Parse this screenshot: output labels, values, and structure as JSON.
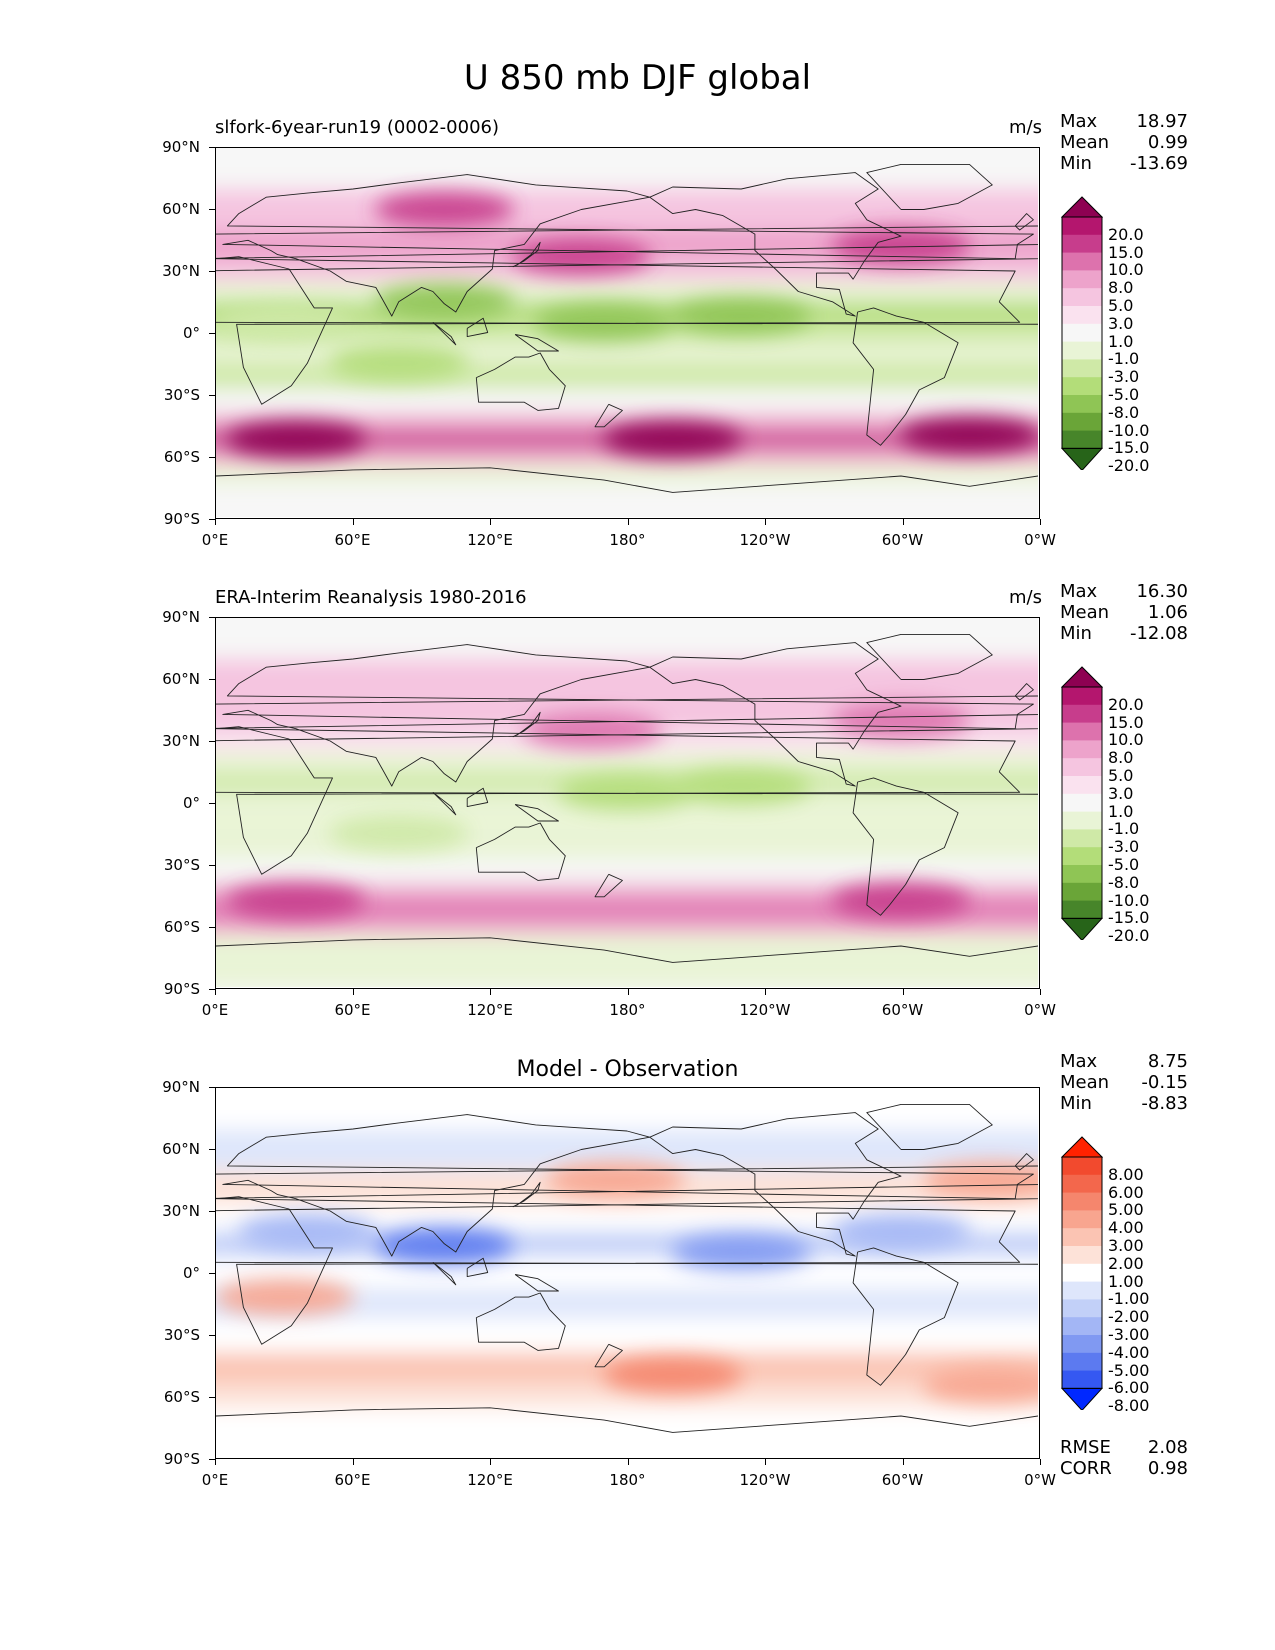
{
  "title": "U 850 mb DJF global",
  "chart_data": [
    {
      "type": "heatmap",
      "subtitle": "slfork-6year-run19 (0002-0006)",
      "units": "m/s",
      "stats": [
        {
          "label": "Max",
          "value": "18.97"
        },
        {
          "label": "Mean",
          "value": "0.99"
        },
        {
          "label": "Min",
          "value": "-13.69"
        }
      ],
      "yticks": [
        "90°N",
        "60°N",
        "30°N",
        "0°",
        "30°S",
        "60°S",
        "90°S"
      ],
      "xticks": [
        "0°E",
        "60°E",
        "120°E",
        "180°",
        "120°W",
        "60°W",
        "0°W"
      ],
      "colorbar_levels": [
        "20.0",
        "15.0",
        "10.0",
        "8.0",
        "5.0",
        "3.0",
        "1.0",
        "-1.0",
        "-3.0",
        "-5.0",
        "-8.0",
        "-10.0",
        "-15.0",
        "-20.0"
      ],
      "colorbar_colors": [
        "#8e0152",
        "#b4166e",
        "#c73d8c",
        "#dd72ad",
        "#eda3cb",
        "#f5c5e0",
        "#fae2ef",
        "#f7f7f7",
        "#e9f4d6",
        "#cfe9a7",
        "#b3dd79",
        "#8fc555",
        "#6aa538",
        "#47852a",
        "#276419"
      ],
      "zones": [
        {
          "lat": 80,
          "value": 1
        },
        {
          "lat": 60,
          "value": 5
        },
        {
          "lat": 40,
          "value": 8
        },
        {
          "lat": 30,
          "value": 6
        },
        {
          "lat": 20,
          "value": -3
        },
        {
          "lat": 10,
          "value": -8
        },
        {
          "lat": 0,
          "value": -5
        },
        {
          "lat": -10,
          "value": -3
        },
        {
          "lat": -20,
          "value": -5
        },
        {
          "lat": -35,
          "value": 0
        },
        {
          "lat": -45,
          "value": 8
        },
        {
          "lat": -52,
          "value": 15
        },
        {
          "lat": -60,
          "value": 8
        },
        {
          "lat": -68,
          "value": -3
        },
        {
          "lat": -80,
          "value": 0
        }
      ],
      "blobs": [
        {
          "lon": 160,
          "lat": 37,
          "value": 15
        },
        {
          "lon": 300,
          "lat": 42,
          "value": 15
        },
        {
          "lon": 100,
          "lat": 60,
          "value": 15
        },
        {
          "lon": 170,
          "lat": 5,
          "value": -10
        },
        {
          "lon": 230,
          "lat": 8,
          "value": -10
        },
        {
          "lon": 100,
          "lat": 15,
          "value": -10
        },
        {
          "lon": 30,
          "lat": 5,
          "value": -5
        },
        {
          "lon": 80,
          "lat": -15,
          "value": -8
        },
        {
          "lon": 35,
          "lat": -52,
          "value": 20
        },
        {
          "lon": 200,
          "lat": -52,
          "value": 20
        },
        {
          "lon": 330,
          "lat": -50,
          "value": 20
        }
      ]
    },
    {
      "type": "heatmap",
      "subtitle": "ERA-Interim Reanalysis 1980-2016",
      "units": "m/s",
      "stats": [
        {
          "label": "Max",
          "value": "16.30"
        },
        {
          "label": "Mean",
          "value": "1.06"
        },
        {
          "label": "Min",
          "value": "-12.08"
        }
      ],
      "yticks": [
        "90°N",
        "60°N",
        "30°N",
        "0°",
        "30°S",
        "60°S",
        "90°S"
      ],
      "xticks": [
        "0°E",
        "60°E",
        "120°E",
        "180°",
        "120°W",
        "60°W",
        "0°W"
      ],
      "colorbar_levels": [
        "20.0",
        "15.0",
        "10.0",
        "8.0",
        "5.0",
        "3.0",
        "1.0",
        "-1.0",
        "-3.0",
        "-5.0",
        "-8.0",
        "-10.0",
        "-15.0",
        "-20.0"
      ],
      "colorbar_colors": [
        "#8e0152",
        "#b4166e",
        "#c73d8c",
        "#dd72ad",
        "#eda3cb",
        "#f5c5e0",
        "#fae2ef",
        "#f7f7f7",
        "#e9f4d6",
        "#cfe9a7",
        "#b3dd79",
        "#8fc555",
        "#6aa538",
        "#47852a",
        "#276419"
      ],
      "zones": [
        {
          "lat": 80,
          "value": 1
        },
        {
          "lat": 60,
          "value": 5
        },
        {
          "lat": 40,
          "value": 6
        },
        {
          "lat": 30,
          "value": 4
        },
        {
          "lat": 20,
          "value": -3
        },
        {
          "lat": 10,
          "value": -6
        },
        {
          "lat": 0,
          "value": -4
        },
        {
          "lat": -10,
          "value": -3
        },
        {
          "lat": -20,
          "value": -4
        },
        {
          "lat": -35,
          "value": 0
        },
        {
          "lat": -45,
          "value": 8
        },
        {
          "lat": -52,
          "value": 12
        },
        {
          "lat": -60,
          "value": 8
        },
        {
          "lat": -68,
          "value": -4
        },
        {
          "lat": -80,
          "value": -2
        }
      ],
      "blobs": [
        {
          "lon": 165,
          "lat": 35,
          "value": 12
        },
        {
          "lon": 300,
          "lat": 40,
          "value": 12
        },
        {
          "lon": 180,
          "lat": 5,
          "value": -8
        },
        {
          "lon": 230,
          "lat": 8,
          "value": -8
        },
        {
          "lon": 80,
          "lat": -15,
          "value": -6
        },
        {
          "lon": 35,
          "lat": -48,
          "value": 15
        },
        {
          "lon": 300,
          "lat": -48,
          "value": 15
        }
      ]
    },
    {
      "type": "heatmap",
      "subtitle": "Model - Observation",
      "units": "",
      "stats": [
        {
          "label": "Max",
          "value": "8.75"
        },
        {
          "label": "Mean",
          "value": "-0.15"
        },
        {
          "label": "Min",
          "value": "-8.83"
        }
      ],
      "extra_stats": [
        {
          "label": "RMSE",
          "value": "2.08"
        },
        {
          "label": "CORR",
          "value": "0.98"
        }
      ],
      "yticks": [
        "90°N",
        "60°N",
        "30°N",
        "0°",
        "30°S",
        "60°S",
        "90°S"
      ],
      "xticks": [
        "0°E",
        "60°E",
        "120°E",
        "180°",
        "120°W",
        "60°W",
        "0°W"
      ],
      "colorbar_levels": [
        "8.00",
        "6.00",
        "5.00",
        "4.00",
        "3.00",
        "2.00",
        "1.00",
        "-1.00",
        "-2.00",
        "-3.00",
        "-4.00",
        "-5.00",
        "-6.00",
        "-8.00"
      ],
      "colorbar_colors": [
        "#ff2200",
        "#f24a2e",
        "#f3674c",
        "#f5866d",
        "#f8a58f",
        "#fbc4b3",
        "#fde2d8",
        "#ffffff",
        "#dee6fb",
        "#c2d0f8",
        "#a3b6f5",
        "#8099f2",
        "#5c7af0",
        "#3558f2",
        "#0028ff"
      ],
      "zones": [
        {
          "lat": 80,
          "value": 0
        },
        {
          "lat": 60,
          "value": -1.5
        },
        {
          "lat": 40,
          "value": 1.5
        },
        {
          "lat": 25,
          "value": 0
        },
        {
          "lat": 15,
          "value": -2.5
        },
        {
          "lat": 0,
          "value": 0
        },
        {
          "lat": -15,
          "value": -1.5
        },
        {
          "lat": -30,
          "value": 0
        },
        {
          "lat": -48,
          "value": 2.5
        },
        {
          "lat": -60,
          "value": 1.5
        },
        {
          "lat": -72,
          "value": 0
        },
        {
          "lat": -80,
          "value": 0
        }
      ],
      "blobs": [
        {
          "lon": 100,
          "lat": 13,
          "value": -6
        },
        {
          "lon": 200,
          "lat": -50,
          "value": 5
        },
        {
          "lon": 340,
          "lat": -55,
          "value": 4
        },
        {
          "lon": 175,
          "lat": 45,
          "value": 4
        },
        {
          "lon": 340,
          "lat": 45,
          "value": 4
        },
        {
          "lon": 30,
          "lat": -12,
          "value": 4
        },
        {
          "lon": 230,
          "lat": 10,
          "value": -4
        },
        {
          "lon": 300,
          "lat": 20,
          "value": -3
        },
        {
          "lon": 40,
          "lat": 20,
          "value": -3
        }
      ]
    }
  ]
}
